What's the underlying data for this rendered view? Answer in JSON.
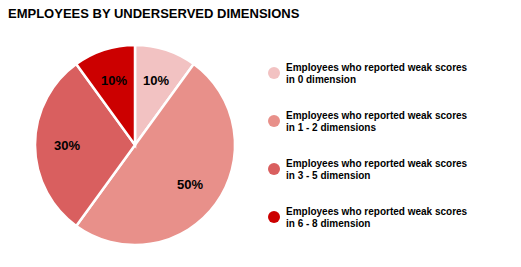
{
  "chart_data": {
    "type": "pie",
    "title": "EMPLOYEES BY UNDERSERVED DIMENSIONS",
    "categories": [
      "Employees who reported weak scores\nin 0 dimension",
      "Employees who reported weak scores\nin 1 - 2 dimensions",
      "Employees who reported weak scores\nin 3 - 5 dimension",
      "Employees who reported weak scores\nin 6 - 8 dimension"
    ],
    "values": [
      10,
      50,
      30,
      10
    ],
    "value_labels": [
      "10%",
      "50%",
      "30%",
      "10%"
    ],
    "colors": [
      "#f2c2c2",
      "#e8908a",
      "#d95f5f",
      "#cc0000"
    ],
    "data_labels": true,
    "legend": "right"
  }
}
